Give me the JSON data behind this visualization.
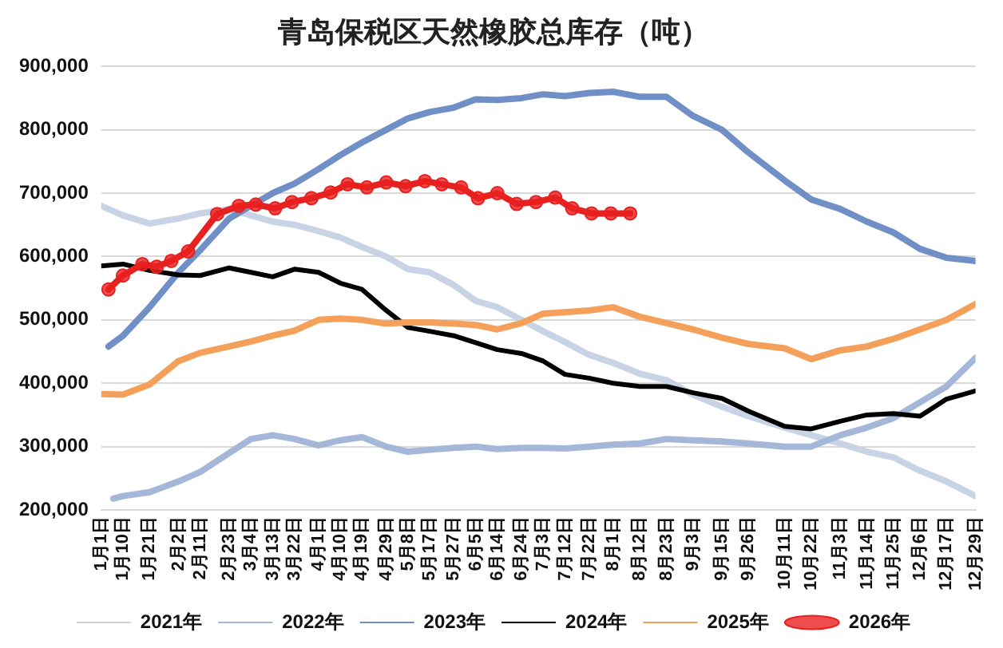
{
  "chart_data": {
    "type": "line",
    "title": "青岛保税区天然橡胶总库存（吨）",
    "x": [
      "--01-01",
      "--01-10",
      "--01-21",
      "--02-02",
      "--02-11",
      "--02-23",
      "--03-04",
      "--03-13",
      "--03-22",
      "--04-01",
      "--04-10",
      "--04-19",
      "--04-29",
      "--05-08",
      "--05-17",
      "--05-27",
      "--06-05",
      "--06-14",
      "--06-24",
      "--07-03",
      "--07-12",
      "--07-22",
      "--08-01",
      "--08-12",
      "--08-23",
      "--09-03",
      "--09-15",
      "--09-26",
      "--10-11",
      "--10-22",
      "--11-03",
      "--11-14",
      "--11-25",
      "--12-06",
      "--12-17",
      "--12-29"
    ],
    "xlim": [
      "--01-01",
      "--12-29"
    ],
    "xticks": [
      {
        "value": "--01-01",
        "label": "1月1日"
      },
      {
        "value": "--01-10",
        "label": "1月10日"
      },
      {
        "value": "--01-21",
        "label": "1月21日"
      },
      {
        "value": "--02-02",
        "label": "2月2日"
      },
      {
        "value": "--02-11",
        "label": "2月11日"
      },
      {
        "value": "--02-23",
        "label": "2月23日"
      },
      {
        "value": "--03-04",
        "label": "3月4日"
      },
      {
        "value": "--03-13",
        "label": "3月13日"
      },
      {
        "value": "--03-22",
        "label": "3月22日"
      },
      {
        "value": "--04-01",
        "label": "4月1日"
      },
      {
        "value": "--04-10",
        "label": "4月10日"
      },
      {
        "value": "--04-19",
        "label": "4月19日"
      },
      {
        "value": "--04-29",
        "label": "4月29日"
      },
      {
        "value": "--05-08",
        "label": "5月8日"
      },
      {
        "value": "--05-17",
        "label": "5月17日"
      },
      {
        "value": "--05-27",
        "label": "5月27日"
      },
      {
        "value": "--06-05",
        "label": "6月5日"
      },
      {
        "value": "--06-14",
        "label": "6月14日"
      },
      {
        "value": "--06-24",
        "label": "6月24日"
      },
      {
        "value": "--07-03",
        "label": "7月3日"
      },
      {
        "value": "--07-12",
        "label": "7月12日"
      },
      {
        "value": "--07-22",
        "label": "7月22日"
      },
      {
        "value": "--08-01",
        "label": "8月1日"
      },
      {
        "value": "--08-12",
        "label": "8月12日"
      },
      {
        "value": "--08-23",
        "label": "8月23日"
      },
      {
        "value": "--09-03",
        "label": "9月3日"
      },
      {
        "value": "--09-15",
        "label": "9月15日"
      },
      {
        "value": "--09-26",
        "label": "9月26日"
      },
      {
        "value": "--10-11",
        "label": "10月11日"
      },
      {
        "value": "--10-22",
        "label": "10月22日"
      },
      {
        "value": "--11-03",
        "label": "11月3日"
      },
      {
        "value": "--11-14",
        "label": "11月14日"
      },
      {
        "value": "--11-25",
        "label": "11月25日"
      },
      {
        "value": "--12-06",
        "label": "12月6日"
      },
      {
        "value": "--12-17",
        "label": "12月17日"
      },
      {
        "value": "--12-29",
        "label": "12月29日"
      }
    ],
    "ylim": [
      200000,
      900000
    ],
    "yticks": [
      {
        "value": 200000,
        "label": "200,000"
      },
      {
        "value": 300000,
        "label": "300,000"
      },
      {
        "value": 400000,
        "label": "400,000"
      },
      {
        "value": 500000,
        "label": "500,000"
      },
      {
        "value": 600000,
        "label": "600,000"
      },
      {
        "value": 700000,
        "label": "700,000"
      },
      {
        "value": 800000,
        "label": "800,000"
      },
      {
        "value": 900000,
        "label": "900,000"
      }
    ],
    "grid": "y",
    "legend": "bottom",
    "marker": "none",
    "line_style": "solid",
    "series": [
      {
        "name": "2021年",
        "color": "#c9d3e6",
        "values": [
          680000,
          665000,
          652000,
          660000,
          668000,
          675000,
          665000,
          655000,
          650000,
          640000,
          630000,
          615000,
          600000,
          580000,
          575000,
          555000,
          530000,
          520000,
          500000,
          482000,
          465000,
          445000,
          432000,
          415000,
          405000,
          382000,
          363000,
          348000,
          330000,
          318000,
          305000,
          292000,
          283000,
          262000,
          245000,
          222000
        ]
      },
      {
        "name": "2022年",
        "color": "#a5b7d9",
        "x": [
          "--01-06",
          "--01-10",
          "--01-21",
          "--02-02",
          "--02-11",
          "--02-23",
          "--03-04",
          "--03-13",
          "--03-22",
          "--04-01",
          "--04-10",
          "--04-19",
          "--04-29",
          "--05-08",
          "--05-17",
          "--05-27",
          "--06-05",
          "--06-14",
          "--06-24",
          "--07-03",
          "--07-12",
          "--07-22",
          "--08-01",
          "--08-12",
          "--08-23",
          "--09-03",
          "--09-15",
          "--09-26",
          "--10-11",
          "--10-22",
          "--11-03",
          "--11-14",
          "--11-25",
          "--12-06",
          "--12-17",
          "--12-29"
        ],
        "values": [
          218000,
          222000,
          228000,
          245000,
          260000,
          290000,
          312000,
          318000,
          312000,
          302000,
          310000,
          315000,
          300000,
          292000,
          295000,
          298000,
          300000,
          296000,
          298000,
          298000,
          297000,
          300000,
          303000,
          305000,
          312000,
          310000,
          308000,
          305000,
          300000,
          300000,
          318000,
          330000,
          345000,
          370000,
          395000,
          440000
        ]
      },
      {
        "name": "2023年",
        "color": "#6f8fc6",
        "x": [
          "--01-04",
          "--01-10",
          "--01-21",
          "--02-02",
          "--02-11",
          "--02-23",
          "--03-04",
          "--03-13",
          "--03-22",
          "--04-01",
          "--04-10",
          "--04-19",
          "--04-29",
          "--05-08",
          "--05-17",
          "--05-27",
          "--06-05",
          "--06-14",
          "--06-24",
          "--07-03",
          "--07-12",
          "--07-22",
          "--08-01",
          "--08-12",
          "--08-23",
          "--09-03",
          "--09-15",
          "--09-26",
          "--10-11",
          "--10-22",
          "--11-03",
          "--11-14",
          "--11-25",
          "--12-06",
          "--12-17",
          "--12-29"
        ],
        "values": [
          458000,
          475000,
          520000,
          575000,
          610000,
          660000,
          680000,
          700000,
          715000,
          738000,
          760000,
          780000,
          800000,
          818000,
          828000,
          835000,
          848000,
          847000,
          850000,
          856000,
          853000,
          858000,
          860000,
          852000,
          852000,
          822000,
          800000,
          764000,
          720000,
          690000,
          675000,
          655000,
          638000,
          612000,
          598000,
          593000
        ]
      },
      {
        "name": "2024年",
        "color": "#000000",
        "values": [
          585000,
          588000,
          578000,
          571000,
          570000,
          582000,
          575000,
          568000,
          580000,
          575000,
          558000,
          548000,
          515000,
          488000,
          482000,
          475000,
          464000,
          453000,
          447000,
          435000,
          414000,
          408000,
          400000,
          395000,
          395000,
          385000,
          376000,
          356000,
          332000,
          328000,
          340000,
          350000,
          352000,
          348000,
          375000,
          388000
        ]
      },
      {
        "name": "2025年",
        "color": "#f4a05a",
        "values": [
          383000,
          382000,
          398000,
          435000,
          448000,
          458000,
          466000,
          475000,
          483000,
          500000,
          502000,
          500000,
          494000,
          496000,
          496000,
          494000,
          492000,
          485000,
          495000,
          510000,
          512000,
          515000,
          520000,
          505000,
          495000,
          485000,
          472000,
          462000,
          455000,
          438000,
          452000,
          458000,
          470000,
          485000,
          500000,
          525000
        ]
      },
      {
        "name": "2026年",
        "color": "#e8201f",
        "marker": "circle",
        "x": [
          "--01-04",
          "--01-10",
          "--01-18",
          "--01-24",
          "--01-30",
          "--02-06",
          "--02-18",
          "--02-27",
          "--03-06",
          "--03-14",
          "--03-21",
          "--03-29",
          "--04-06",
          "--04-13",
          "--04-21",
          "--04-29",
          "--05-07",
          "--05-15",
          "--05-22",
          "--05-30",
          "--06-06",
          "--06-14",
          "--06-22",
          "--06-30",
          "--07-08",
          "--07-15",
          "--07-23",
          "--07-31",
          "--08-08"
        ],
        "values": [
          548000,
          570000,
          588000,
          584000,
          593000,
          608000,
          667000,
          680000,
          682000,
          676000,
          686000,
          692000,
          701000,
          714000,
          709000,
          717000,
          711000,
          719000,
          714000,
          709000,
          692000,
          700000,
          683000,
          686000,
          693000,
          676000,
          668000,
          668000,
          668000
        ]
      }
    ]
  }
}
